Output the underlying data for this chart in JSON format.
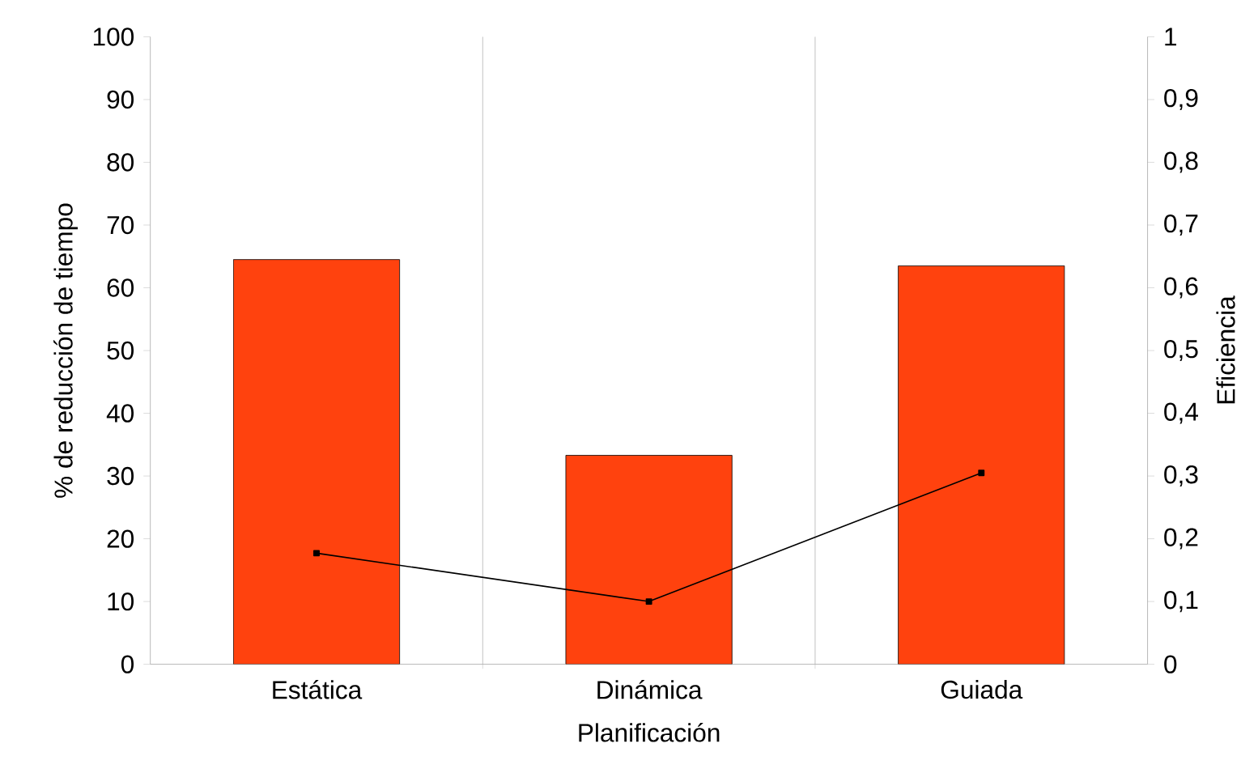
{
  "chart_data": {
    "type": "bar",
    "xlabel": "Planificación",
    "ylabel": "% de reducción de tiempo",
    "y2label": "Eficiencia",
    "categories": [
      "Estática",
      "Dinámica",
      "Guiada"
    ],
    "series": [
      {
        "color": "#ff420e",
        "values": [
          64.5,
          33.3,
          63.5
        ]
      },
      {
        "type": "line",
        "axis": "y2",
        "color": "#000000",
        "marker": "square",
        "values": [
          0.177,
          0.1,
          0.305
        ]
      }
    ],
    "ylim": [
      0,
      100
    ],
    "yticks": [
      0,
      10,
      20,
      30,
      40,
      50,
      60,
      70,
      80,
      90,
      100
    ],
    "y2lim": [
      0,
      1
    ],
    "y2ticks": [
      0,
      {
        "value": 0.1,
        "label": "0,1"
      },
      {
        "value": 0.2,
        "label": "0,2"
      },
      {
        "value": 0.3,
        "label": "0,3"
      },
      {
        "value": 0.4,
        "label": "0,4"
      },
      {
        "value": 0.5,
        "label": "0,5"
      },
      {
        "value": 0.6,
        "label": "0,6"
      },
      {
        "value": 0.7,
        "label": "0,7"
      },
      {
        "value": 0.8,
        "label": "0,8"
      },
      {
        "value": 0.9,
        "label": "0,9"
      },
      1
    ],
    "grid": "x"
  }
}
